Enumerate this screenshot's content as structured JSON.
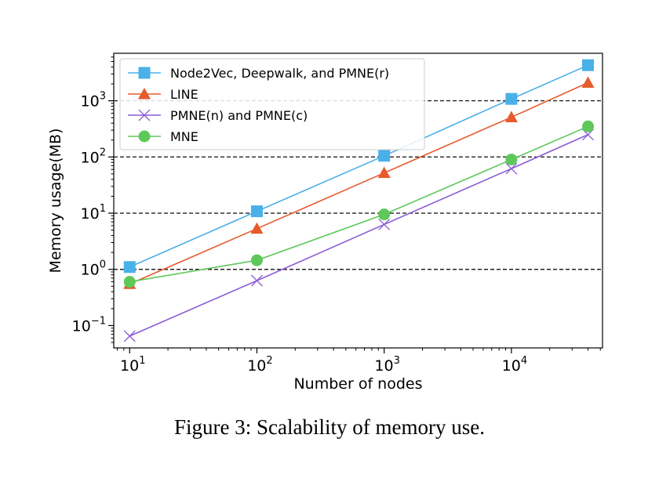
{
  "caption": "Figure 3: Scalability of memory use.",
  "chart_data": {
    "type": "line",
    "x_scale": "log",
    "y_scale": "log",
    "xlabel": "Number of nodes",
    "ylabel": "Memory usage(MB)",
    "x": [
      10,
      100,
      1000,
      10000,
      40000
    ],
    "xlim": [
      7.5,
      52000
    ],
    "ylim": [
      0.04,
      7000
    ],
    "x_ticks": [
      {
        "value": 10,
        "base": "10",
        "exp": "1"
      },
      {
        "value": 100,
        "base": "10",
        "exp": "2"
      },
      {
        "value": 1000,
        "base": "10",
        "exp": "3"
      },
      {
        "value": 10000,
        "base": "10",
        "exp": "4"
      }
    ],
    "y_ticks": [
      {
        "value": 0.1,
        "base": "10",
        "exp": "−1"
      },
      {
        "value": 1,
        "base": "10",
        "exp": "0"
      },
      {
        "value": 10,
        "base": "10",
        "exp": "1"
      },
      {
        "value": 100,
        "base": "10",
        "exp": "2"
      },
      {
        "value": 1000,
        "base": "10",
        "exp": "3"
      }
    ],
    "gridlines_y": [
      1,
      10,
      100,
      1000
    ],
    "grid_style": "dashed horizontal",
    "legend_position": "top-left",
    "series": [
      {
        "name": "Node2Vec, Deepwalk, and PMNE(r)",
        "marker": "square",
        "color": "#4ab0e8",
        "values": [
          1.1,
          10.8,
          105,
          1080,
          4300
        ]
      },
      {
        "name": "LINE",
        "marker": "triangle",
        "color": "#e65a2c",
        "values": [
          0.55,
          5.3,
          52,
          510,
          2100
        ]
      },
      {
        "name": "PMNE(n) and PMNE(c)",
        "marker": "x",
        "color": "#8a5cd6",
        "values": [
          0.065,
          0.63,
          6.3,
          62,
          250
        ]
      },
      {
        "name": "MNE",
        "marker": "circle",
        "color": "#5ec85a",
        "values": [
          0.6,
          1.45,
          9.5,
          90,
          350
        ]
      }
    ]
  }
}
